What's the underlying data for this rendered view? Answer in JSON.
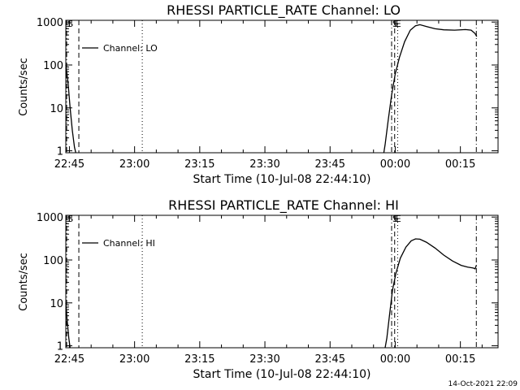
{
  "footer": {
    "timestamp": "14-Oct-2021 22:09"
  },
  "colors": {
    "background": "#ffffff",
    "foreground": "#000000"
  },
  "chart_data": [
    {
      "type": "line",
      "title": "RHESSI PARTICLE_RATE Channel: LO",
      "xlabel": "Start Time (10-Jul-08 22:44:10)",
      "ylabel": "Counts/sec",
      "yscale": "log",
      "ylim": [
        0.9,
        1100
      ],
      "xlim": [
        0,
        99.5
      ],
      "x_unit": "minutes since 22:44:10",
      "xticks": [
        {
          "value": 0.83,
          "label": "22:45"
        },
        {
          "value": 15.83,
          "label": "23:00"
        },
        {
          "value": 30.83,
          "label": "23:15"
        },
        {
          "value": 45.83,
          "label": "23:30"
        },
        {
          "value": 60.83,
          "label": "23:45"
        },
        {
          "value": 75.83,
          "label": "00:00"
        },
        {
          "value": 90.83,
          "label": "00:15"
        }
      ],
      "yticks": [
        {
          "value": 1,
          "label": "1"
        },
        {
          "value": 10,
          "label": "10"
        },
        {
          "value": 100,
          "label": "100"
        },
        {
          "value": 1000,
          "label": "1000"
        }
      ],
      "legend": {
        "entry": "Channel: LO",
        "position": "top-left"
      },
      "markers": [
        {
          "x": 0.2,
          "label": "S",
          "style": "dash-dot"
        },
        {
          "x": 3.0,
          "label": "",
          "style": "dashed"
        },
        {
          "x": 17.6,
          "label": "",
          "style": "dotted"
        },
        {
          "x": 75.0,
          "label": "S",
          "style": "dash-dot"
        },
        {
          "x": 75.7,
          "label": "E",
          "style": "dashed"
        },
        {
          "x": 76.4,
          "label": "",
          "style": "dotted"
        },
        {
          "x": 94.5,
          "label": "",
          "style": "dash-dot"
        }
      ],
      "series": [
        {
          "name": "Channel: LO",
          "segments": [
            [
              [
                0,
                100
              ],
              [
                0.5,
                40
              ],
              [
                1.0,
                10
              ],
              [
                1.5,
                3
              ],
              [
                2.0,
                1.2
              ],
              [
                2.3,
                0.9
              ]
            ],
            [
              [
                73.2,
                0.9
              ],
              [
                73.5,
                1.4
              ],
              [
                74.2,
                5
              ],
              [
                75.0,
                20
              ],
              [
                75.8,
                60
              ],
              [
                76.8,
                150
              ],
              [
                78.0,
                350
              ],
              [
                79.3,
                650
              ],
              [
                80.5,
                820
              ],
              [
                81.5,
                870
              ],
              [
                83.0,
                790
              ],
              [
                85.0,
                700
              ],
              [
                87.0,
                660
              ],
              [
                89.5,
                650
              ],
              [
                92.0,
                670
              ],
              [
                93.3,
                650
              ],
              [
                94.2,
                540
              ],
              [
                94.6,
                460
              ]
            ]
          ]
        }
      ]
    },
    {
      "type": "line",
      "title": "RHESSI PARTICLE_RATE Channel: HI",
      "xlabel": "Start Time (10-Jul-08 22:44:10)",
      "ylabel": "Counts/sec",
      "yscale": "log",
      "ylim": [
        0.9,
        1100
      ],
      "xlim": [
        0,
        99.5
      ],
      "x_unit": "minutes since 22:44:10",
      "xticks": [
        {
          "value": 0.83,
          "label": "22:45"
        },
        {
          "value": 15.83,
          "label": "23:00"
        },
        {
          "value": 30.83,
          "label": "23:15"
        },
        {
          "value": 45.83,
          "label": "23:30"
        },
        {
          "value": 60.83,
          "label": "23:45"
        },
        {
          "value": 75.83,
          "label": "00:00"
        },
        {
          "value": 90.83,
          "label": "00:15"
        }
      ],
      "yticks": [
        {
          "value": 1,
          "label": "1"
        },
        {
          "value": 10,
          "label": "10"
        },
        {
          "value": 100,
          "label": "100"
        },
        {
          "value": 1000,
          "label": "1000"
        }
      ],
      "legend": {
        "entry": "Channel: HI",
        "position": "top-left"
      },
      "markers": [
        {
          "x": 0.2,
          "label": "S",
          "style": "dash-dot"
        },
        {
          "x": 3.0,
          "label": "",
          "style": "dashed"
        },
        {
          "x": 17.6,
          "label": "",
          "style": "dotted"
        },
        {
          "x": 75.0,
          "label": "S",
          "style": "dash-dot"
        },
        {
          "x": 75.7,
          "label": "E",
          "style": "dashed"
        },
        {
          "x": 76.4,
          "label": "",
          "style": "dotted"
        },
        {
          "x": 94.5,
          "label": "",
          "style": "dash-dot"
        }
      ],
      "series": [
        {
          "name": "Channel: HI",
          "segments": [
            [
              [
                0,
                10
              ],
              [
                0.3,
                4
              ],
              [
                0.7,
                1.5
              ],
              [
                1.0,
                0.9
              ]
            ],
            [
              [
                73.5,
                0.9
              ],
              [
                73.9,
                1.5
              ],
              [
                74.5,
                5
              ],
              [
                75.2,
                20
              ],
              [
                76.0,
                50
              ],
              [
                77.0,
                110
              ],
              [
                78.3,
                200
              ],
              [
                79.5,
                280
              ],
              [
                80.5,
                310
              ],
              [
                81.5,
                305
              ],
              [
                83.0,
                260
              ],
              [
                85.0,
                190
              ],
              [
                87.0,
                130
              ],
              [
                89.0,
                95
              ],
              [
                91.0,
                75
              ],
              [
                92.5,
                68
              ],
              [
                93.8,
                65
              ],
              [
                94.2,
                62
              ],
              [
                94.5,
                75
              ]
            ]
          ]
        }
      ]
    }
  ]
}
